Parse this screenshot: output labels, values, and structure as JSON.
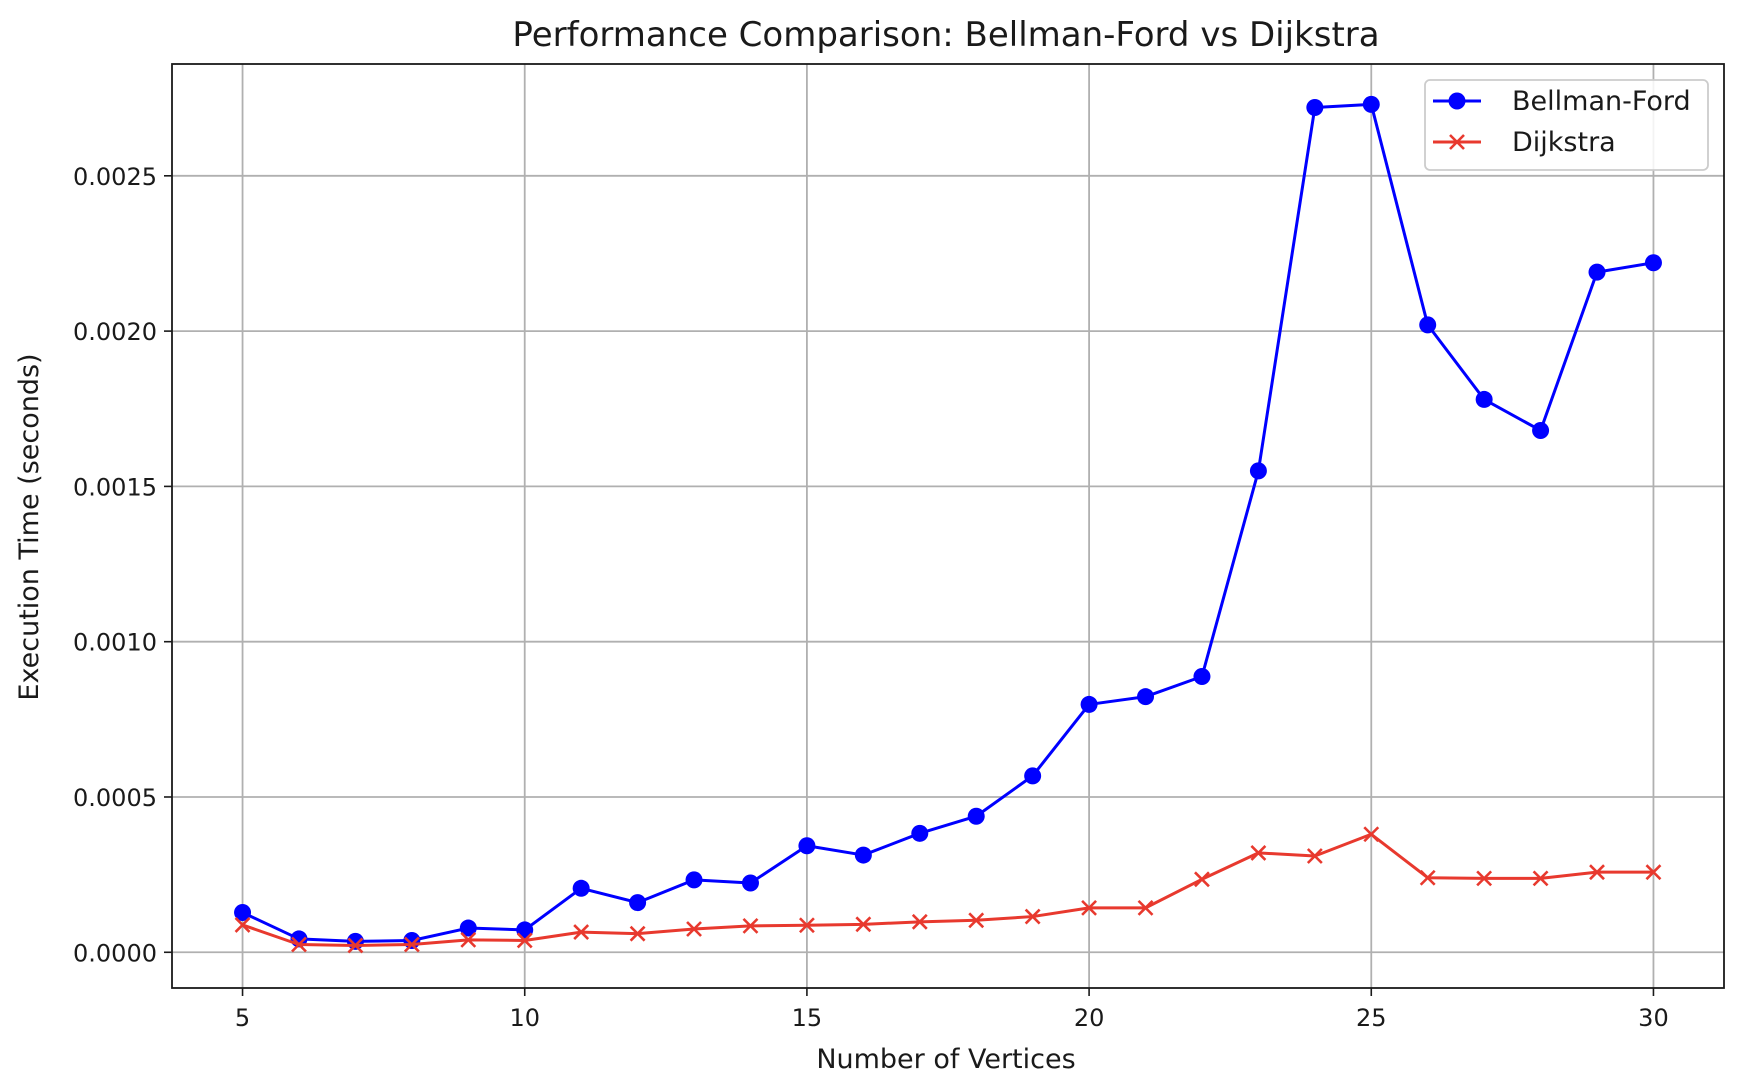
{
  "chart_data": {
    "type": "line",
    "title": "Performance Comparison: Bellman-Ford vs Dijkstra",
    "xlabel": "Number of Vertices",
    "ylabel": "Execution Time (seconds)",
    "xlim": [
      3.75,
      31.25
    ],
    "ylim": [
      -0.000115,
      0.00286
    ],
    "grid": true,
    "legend_position": "top-right",
    "x_ticks": [
      5,
      10,
      15,
      20,
      25,
      30
    ],
    "x_tick_labels": [
      "5",
      "10",
      "15",
      "20",
      "25",
      "30"
    ],
    "y_ticks": [
      0.0,
      0.0005,
      0.001,
      0.0015,
      0.002,
      0.0025
    ],
    "y_tick_labels": [
      "0.0000",
      "0.0005",
      "0.0010",
      "0.0015",
      "0.0020",
      "0.0025"
    ],
    "x": [
      5,
      6,
      7,
      8,
      9,
      10,
      11,
      12,
      13,
      14,
      15,
      16,
      17,
      18,
      19,
      20,
      21,
      22,
      23,
      24,
      25,
      26,
      27,
      28,
      29,
      30
    ],
    "series": [
      {
        "name": "Bellman-Ford",
        "color": "#0000ff",
        "marker": "circle",
        "values": [
          0.000128,
          4.3e-05,
          3.5e-05,
          3.8e-05,
          7.8e-05,
          7.2e-05,
          0.000206,
          0.00016,
          0.000233,
          0.000223,
          0.000343,
          0.000313,
          0.000383,
          0.000438,
          0.000568,
          0.000798,
          0.000823,
          0.000888,
          0.00155,
          0.00272,
          0.00273,
          0.00202,
          0.00178,
          0.00168,
          0.00219,
          0.00222
        ]
      },
      {
        "name": "Dijkstra",
        "color": "#e8392e",
        "marker": "x",
        "values": [
          8.8e-05,
          2.5e-05,
          2.2e-05,
          2.5e-05,
          4e-05,
          3.8e-05,
          6.5e-05,
          6e-05,
          7.5e-05,
          8.5e-05,
          8.7e-05,
          9e-05,
          9.8e-05,
          0.000103,
          0.000115,
          0.000143,
          0.000143,
          0.000235,
          0.00032,
          0.00031,
          0.00038,
          0.00024,
          0.000238,
          0.000238,
          0.000258,
          0.000258
        ]
      }
    ]
  }
}
